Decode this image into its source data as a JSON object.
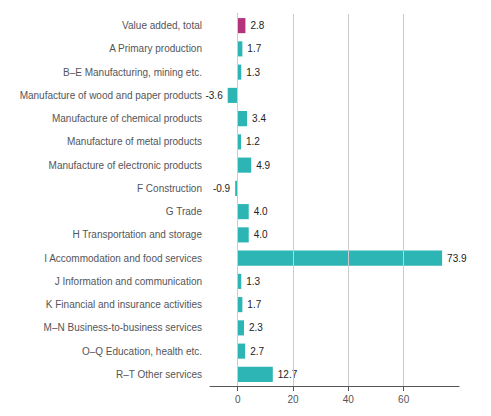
{
  "chart_data": {
    "type": "bar",
    "orientation": "horizontal",
    "categories": [
      "Value added, total",
      "A Primary production",
      "B–E Manufacturing, mining etc.",
      "Manufacture of wood and paper products",
      "Manufacture of chemical products",
      "Manufacture of metal products",
      "Manufacture of electronic products",
      "F Construction",
      "G Trade",
      "H Transportation and storage",
      "I Accommodation and food services",
      "J Information and communication",
      "K Financial and insurance activities",
      "M–N Business-to-business services",
      "O–Q Education, health etc.",
      "R–T Other services"
    ],
    "values": [
      2.8,
      1.7,
      1.3,
      -3.6,
      3.4,
      1.2,
      4.9,
      -0.9,
      4.0,
      4.0,
      73.9,
      1.3,
      1.7,
      2.3,
      2.7,
      12.7
    ],
    "value_labels": [
      "2.8",
      "1.7",
      "1.3",
      "-3.6",
      "3.4",
      "1.2",
      "4.9",
      "-0.9",
      "4.0",
      "4.0",
      "73.9",
      "1.3",
      "1.7",
      "2.3",
      "2.7",
      "12.7"
    ],
    "colors": [
      "#b5337a",
      "#2db5b5",
      "#2db5b5",
      "#2db5b5",
      "#2db5b5",
      "#2db5b5",
      "#2db5b5",
      "#2db5b5",
      "#2db5b5",
      "#2db5b5",
      "#2db5b5",
      "#2db5b5",
      "#2db5b5",
      "#2db5b5",
      "#2db5b5",
      "#2db5b5"
    ],
    "xlim": [
      -10,
      80
    ],
    "xticks": [
      0,
      20,
      40,
      60
    ],
    "grid": true,
    "data_labels": true
  }
}
